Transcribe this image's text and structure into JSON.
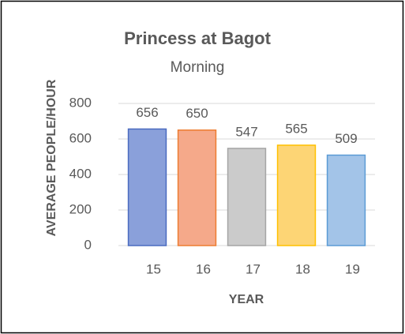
{
  "chart_data": {
    "type": "bar",
    "title": "Princess at Bagot",
    "subtitle": "Morning",
    "x_label": "YEAR",
    "y_label": "AVERAGE PEOPLE/HOUR",
    "categories": [
      "15",
      "16",
      "17",
      "18",
      "19"
    ],
    "values": [
      656,
      650,
      547,
      565,
      509
    ],
    "colors": [
      "#8aa0da",
      "#f5a98a",
      "#cbcbcb",
      "#fdd575",
      "#a3c4e8"
    ],
    "edge_colors": [
      "#4a6bc0",
      "#ed7d31",
      "#a5a5a5",
      "#ffc000",
      "#5b9bd5"
    ],
    "ylim": [
      0,
      800
    ],
    "yticks": [
      0,
      200,
      400,
      600,
      800
    ],
    "grid": true
  }
}
